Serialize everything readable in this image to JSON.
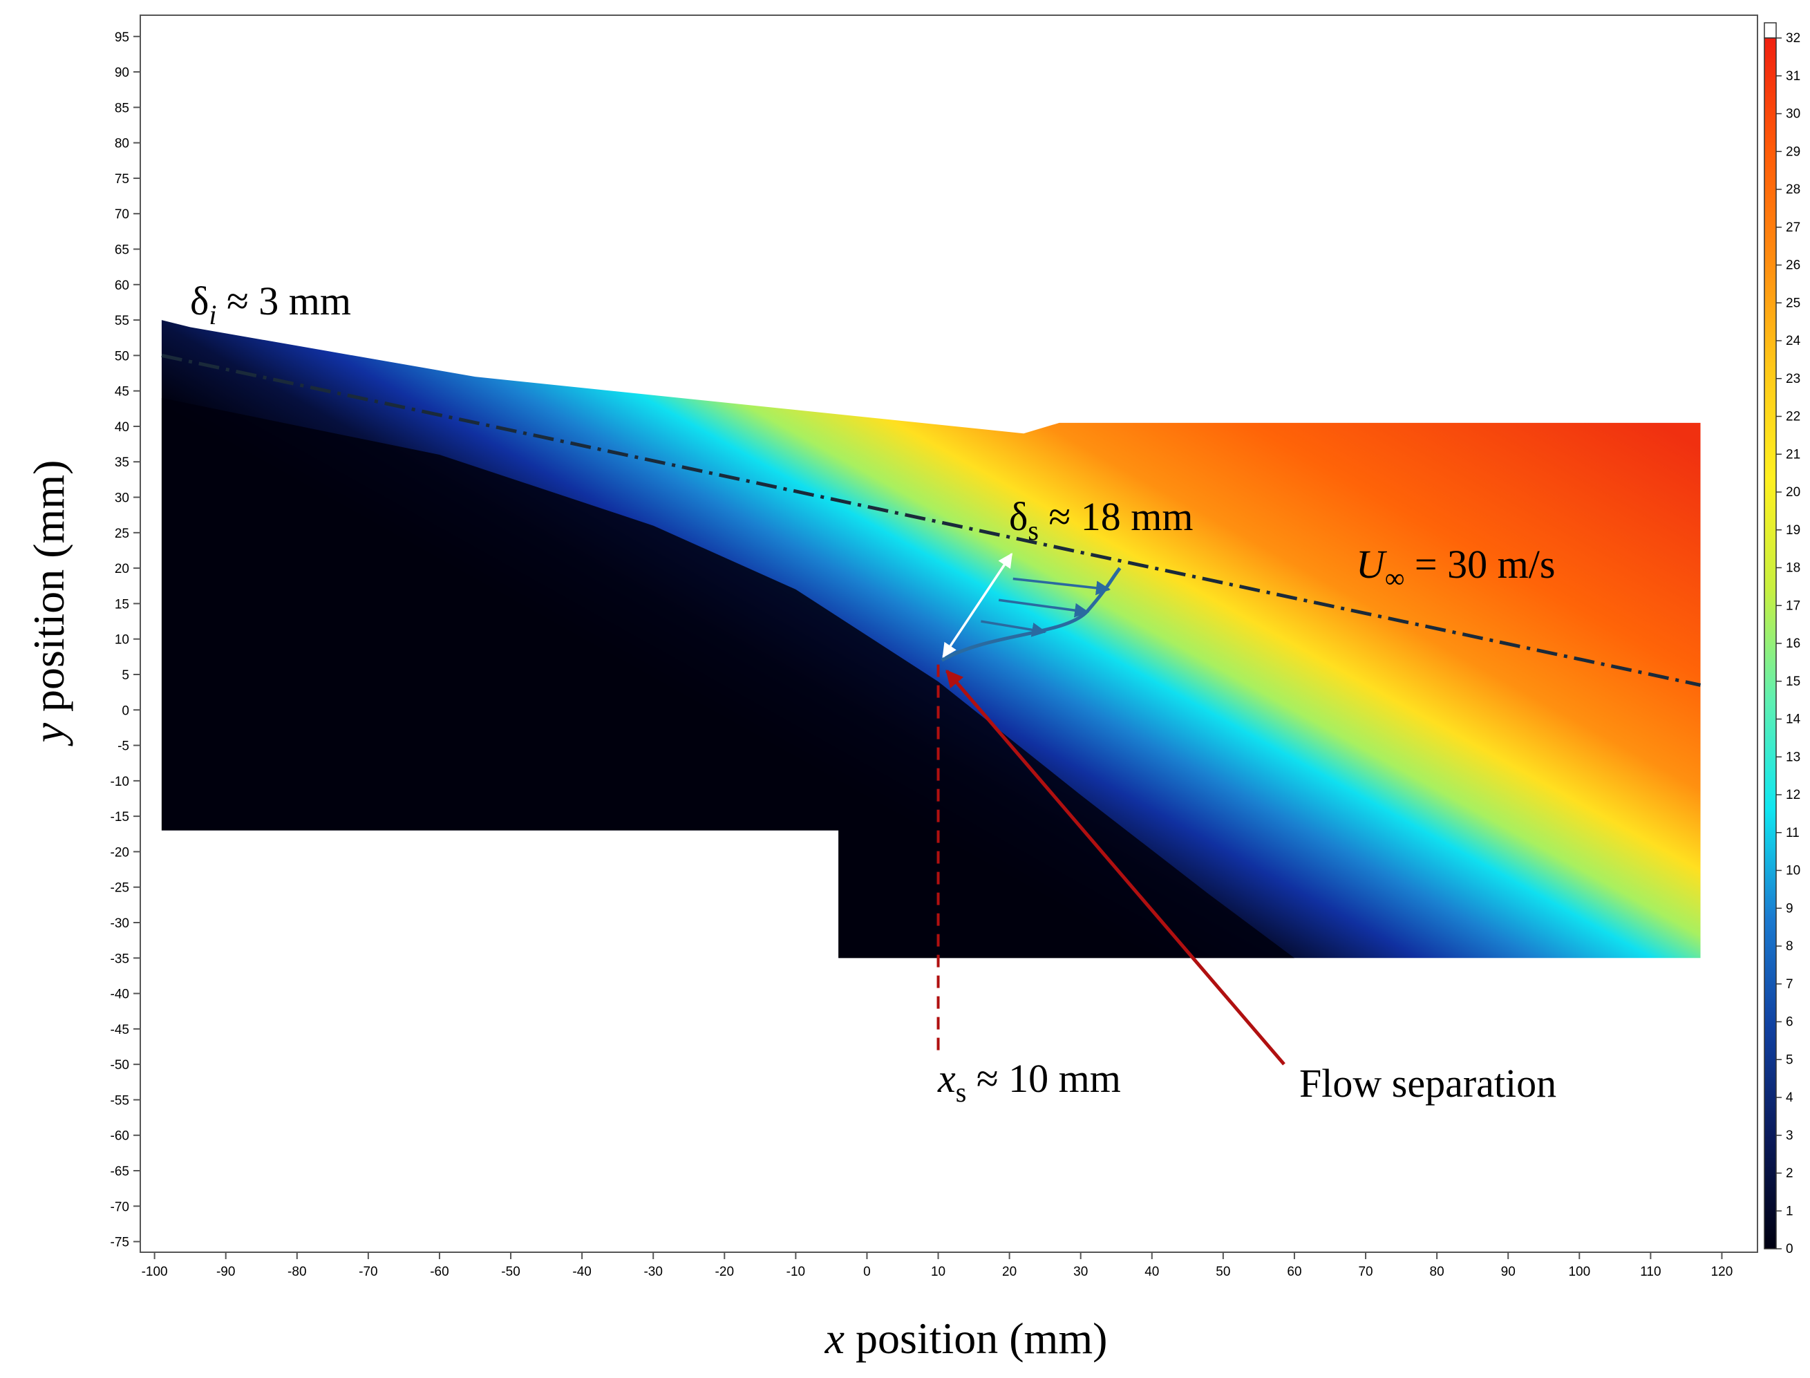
{
  "chart_data": {
    "type": "heatmap",
    "title": "",
    "xlabel_var": "x",
    "xlabel_rest": " position (mm)",
    "ylabel_var": "y",
    "ylabel_rest": " position (mm)",
    "xlim": [
      -102,
      125
    ],
    "ylim": [
      -76.5,
      98
    ],
    "x_ticks": [
      -100,
      -90,
      -80,
      -70,
      -60,
      -50,
      -40,
      -30,
      -20,
      -10,
      0,
      10,
      20,
      30,
      40,
      50,
      60,
      70,
      80,
      90,
      100,
      110,
      120
    ],
    "y_ticks": [
      95,
      90,
      85,
      80,
      75,
      70,
      65,
      60,
      55,
      50,
      45,
      40,
      35,
      30,
      25,
      20,
      15,
      10,
      5,
      0,
      -5,
      -10,
      -15,
      -20,
      -25,
      -30,
      -35,
      -40,
      -45,
      -50,
      -55,
      -60,
      -65,
      -70,
      -75
    ],
    "colorbar": {
      "min": 0,
      "max": 32,
      "ticks": [
        32,
        31,
        30,
        29,
        28,
        27,
        26,
        25,
        24,
        23,
        22,
        21,
        20,
        19,
        18,
        17,
        16,
        15,
        14,
        13,
        12,
        11,
        10,
        9,
        8,
        7,
        6,
        5,
        4,
        3,
        2,
        1,
        0
      ],
      "stops": [
        "#000010",
        "#0a1a5a",
        "#1040a0",
        "#1a7ad0",
        "#10e6f0",
        "#60f0b0",
        "#c8f040",
        "#fff020",
        "#ffc818",
        "#ff8c10",
        "#ff5a08",
        "#f02010"
      ]
    },
    "field": {
      "measured_region_outline": [
        [
          -99,
          55
        ],
        [
          -95,
          54
        ],
        [
          -55,
          47
        ],
        [
          22,
          39
        ],
        [
          27,
          40.5
        ],
        [
          117,
          40.5
        ],
        [
          117,
          -35
        ],
        [
          -4,
          -35
        ],
        [
          -4,
          -17
        ],
        [
          -99,
          -17
        ]
      ],
      "free_stream_values": [
        32,
        31,
        29
      ],
      "shear_layer_center_line": [
        [
          -99,
          46
        ],
        [
          10,
          6
        ],
        [
          117,
          -22
        ]
      ]
    },
    "reference_lines": {
      "shear_layer_edge": [
        [
          -99,
          50
        ],
        [
          117,
          3.5
        ]
      ],
      "separation_x": 10,
      "separation_y_range": [
        -48,
        7
      ]
    },
    "annotations": {
      "delta_i_symbol": "δ",
      "delta_i_sub": "i",
      "delta_i_rest": " ≈ 3 mm",
      "delta_s_symbol": "δ",
      "delta_s_sub": "s",
      "delta_s_rest": " ≈ 18 mm",
      "u_inf_symbol": "U",
      "u_inf_sub": "∞",
      "u_inf_rest": " = 30 m/s",
      "x_s_symbol": "x",
      "x_s_sub": "s",
      "x_s_rest": " ≈ 10 mm",
      "flow_separation": "Flow separation"
    },
    "colors": {
      "shear_line": "#1a2a3a",
      "separation": "#b01010",
      "profile": "#2a6aa0",
      "thickness_arrow": "#ffffff"
    }
  }
}
